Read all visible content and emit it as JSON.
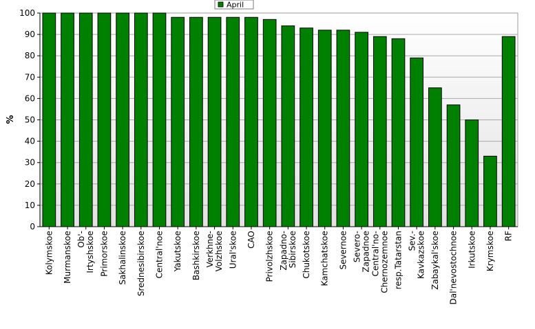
{
  "chart_data": {
    "type": "bar",
    "title": "",
    "xlabel": "",
    "ylabel": "%",
    "ylim": [
      0,
      100
    ],
    "yticks": [
      0,
      10,
      20,
      30,
      40,
      50,
      60,
      70,
      80,
      90,
      100
    ],
    "grid": true,
    "legend_position": "top-center",
    "series": [
      {
        "name": "April",
        "color": "#008000",
        "values": [
          100,
          100,
          100,
          100,
          100,
          100,
          100,
          98,
          98,
          98,
          98,
          98,
          97,
          94,
          93,
          92,
          92,
          91,
          89,
          88,
          79,
          65,
          57,
          50,
          33,
          89
        ]
      }
    ],
    "categories": [
      [
        "Kolymskoe"
      ],
      [
        "Murmanskoe"
      ],
      [
        "Ob'-",
        "Irtyshskoe"
      ],
      [
        "Primorskoe"
      ],
      [
        "Sakhalinskoe"
      ],
      [
        "Srednesibirskoe"
      ],
      [
        "Central'noe"
      ],
      [
        "Yakutskoe"
      ],
      [
        "Bashkirskoe"
      ],
      [
        "Verkhne-",
        "Volzhskoe"
      ],
      [
        "Ural'skoe"
      ],
      [
        "CAO"
      ],
      [
        "Privolzhskoe"
      ],
      [
        "Zapadno-",
        "Sibirskoe"
      ],
      [
        "Chukotskoe"
      ],
      [
        "Kamchatskoe"
      ],
      [
        "Severnoe"
      ],
      [
        "Severo-",
        "Zapadnoe"
      ],
      [
        "Central'no-",
        "Chernozemnoe"
      ],
      [
        "resp.Tatarstan"
      ],
      [
        "Sev.-",
        "Kavkazskoe"
      ],
      [
        "Zabaykal'skoe"
      ],
      [
        "Dal'nevostochnoe"
      ],
      [
        "Irkutskoe"
      ],
      [
        "Krymskoe"
      ],
      [
        "RF"
      ]
    ]
  }
}
